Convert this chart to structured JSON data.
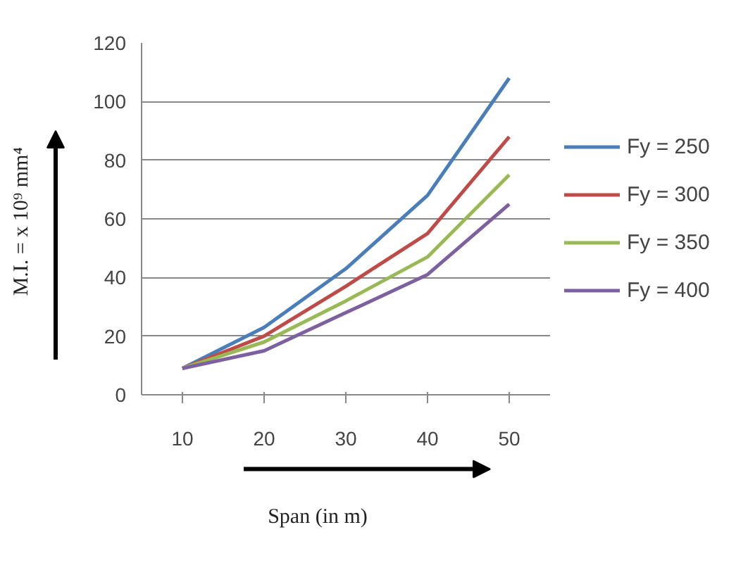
{
  "chart_data": {
    "type": "line",
    "xlabel": "Span (in m)",
    "ylabel": "M.I. =  x 10⁹ mm⁴",
    "categories": [
      "10",
      "20",
      "30",
      "40",
      "50"
    ],
    "series": [
      {
        "name": "Fy = 250",
        "color": "#4a7ebb",
        "values": [
          9,
          23,
          43,
          68,
          108
        ]
      },
      {
        "name": "Fy = 300",
        "color": "#be4b48",
        "values": [
          9,
          20,
          37,
          55,
          88
        ]
      },
      {
        "name": "Fy = 350",
        "color": "#98b954",
        "values": [
          9,
          18,
          32,
          47,
          75
        ]
      },
      {
        "name": "Fy = 400",
        "color": "#7d60a0",
        "values": [
          9,
          15,
          28,
          41,
          65
        ]
      }
    ],
    "ylim": [
      0,
      120
    ],
    "yticks": [
      0,
      20,
      40,
      60,
      80,
      100,
      120
    ],
    "grid": "y",
    "legend": "right",
    "marker": "none",
    "line_style": "solid"
  }
}
